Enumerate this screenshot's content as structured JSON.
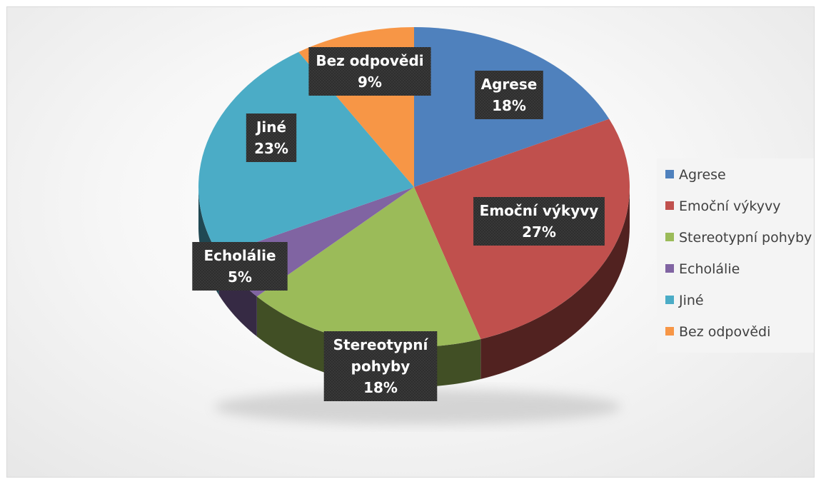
{
  "chart_data": {
    "type": "pie",
    "title": "",
    "categories": [
      "Agrese",
      "Emoční výkyvy",
      "Stereotypní pohyby",
      "Echolálie",
      "Jiné",
      "Bez odpovědi"
    ],
    "values": [
      18,
      27,
      18,
      5,
      23,
      9
    ],
    "unit": "%",
    "colors": [
      "#4f81bd",
      "#c0504d",
      "#9bbb59",
      "#8064a2",
      "#4bacc6",
      "#f79646"
    ],
    "data_labels": [
      [
        "Agrese",
        "18%"
      ],
      [
        "Emoční výkyvy",
        "27%"
      ],
      [
        "Stereotypní",
        "pohyby",
        "18%"
      ],
      [
        "Echolálie",
        "5%"
      ],
      [
        "Jiné",
        "23%"
      ],
      [
        "Bez odpovědi",
        "9%"
      ]
    ],
    "style": "3d",
    "legend": "right",
    "grid": false
  }
}
